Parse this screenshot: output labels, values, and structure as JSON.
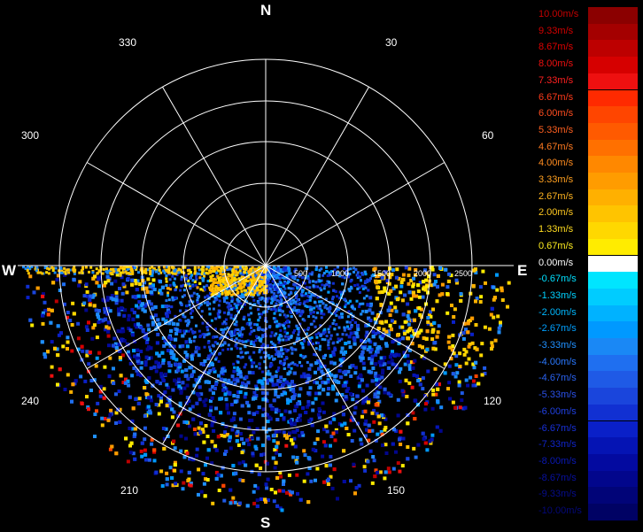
{
  "compass": {
    "north": "N",
    "south": "S",
    "east": "E",
    "west": "W"
  },
  "bearings": [
    "30",
    "60",
    "120",
    "150",
    "210",
    "240",
    "300",
    "330"
  ],
  "range_labels": [
    "500",
    "1000",
    "1500",
    "2000",
    "2500"
  ],
  "legend": [
    {
      "label": "10.00m/s",
      "color": "#8b0000",
      "text": "#c40000"
    },
    {
      "label": "9.33m/s",
      "color": "#a40000",
      "text": "#d20000"
    },
    {
      "label": "8.67m/s",
      "color": "#bd0000",
      "text": "#e00000"
    },
    {
      "label": "8.00m/s",
      "color": "#d60000",
      "text": "#ee1010"
    },
    {
      "label": "7.33m/s",
      "color": "#ee1010",
      "text": "#ff2020"
    },
    {
      "label": "6.67m/s",
      "color": "#ff2a00",
      "text": "#ff3a1a"
    },
    {
      "label": "6.00m/s",
      "color": "#ff4500",
      "text": "#ff4d20"
    },
    {
      "label": "5.33m/s",
      "color": "#ff5a00",
      "text": "#ff6020"
    },
    {
      "label": "4.67m/s",
      "color": "#ff7000",
      "text": "#ff7a20"
    },
    {
      "label": "4.00m/s",
      "color": "#ff8800",
      "text": "#ff8c20"
    },
    {
      "label": "3.33m/s",
      "color": "#ff9c00",
      "text": "#ffa020"
    },
    {
      "label": "2.67m/s",
      "color": "#ffb000",
      "text": "#ffb420"
    },
    {
      "label": "2.00m/s",
      "color": "#ffc400",
      "text": "#ffc820"
    },
    {
      "label": "1.33m/s",
      "color": "#ffd800",
      "text": "#ffdc20"
    },
    {
      "label": "0.67m/s",
      "color": "#ffec00",
      "text": "#ffee20"
    },
    {
      "label": "0.00m/s",
      "color": "#ffffff",
      "text": "#ffffff"
    },
    {
      "label": "-0.67m/s",
      "color": "#00e5ff",
      "text": "#00e0ff"
    },
    {
      "label": "-1.33m/s",
      "color": "#00ccff",
      "text": "#00d0ff"
    },
    {
      "label": "-2.00m/s",
      "color": "#00b2ff",
      "text": "#00b8ff"
    },
    {
      "label": "-2.67m/s",
      "color": "#0099ff",
      "text": "#00a0ff"
    },
    {
      "label": "-3.33m/s",
      "color": "#1a88f5",
      "text": "#2090ff"
    },
    {
      "label": "-4.00m/s",
      "color": "#1f6ff0",
      "text": "#2a78ff"
    },
    {
      "label": "-4.67m/s",
      "color": "#1f5ae6",
      "text": "#2a62f0"
    },
    {
      "label": "-5.33m/s",
      "color": "#1a45dc",
      "text": "#2a50e8"
    },
    {
      "label": "-6.00m/s",
      "color": "#1130d2",
      "text": "#2040e0"
    },
    {
      "label": "-6.67m/s",
      "color": "#0a20c8",
      "text": "#1830d8"
    },
    {
      "label": "-7.33m/s",
      "color": "#0514b4",
      "text": "#1024c8"
    },
    {
      "label": "-8.00m/s",
      "color": "#030aa0",
      "text": "#0a18b4"
    },
    {
      "label": "-8.67m/s",
      "color": "#02068c",
      "text": "#0810a0"
    },
    {
      "label": "-9.33m/s",
      "color": "#010478",
      "text": "#060c8c"
    },
    {
      "label": "-10.00m/s",
      "color": "#000264",
      "text": "#040878"
    }
  ]
}
